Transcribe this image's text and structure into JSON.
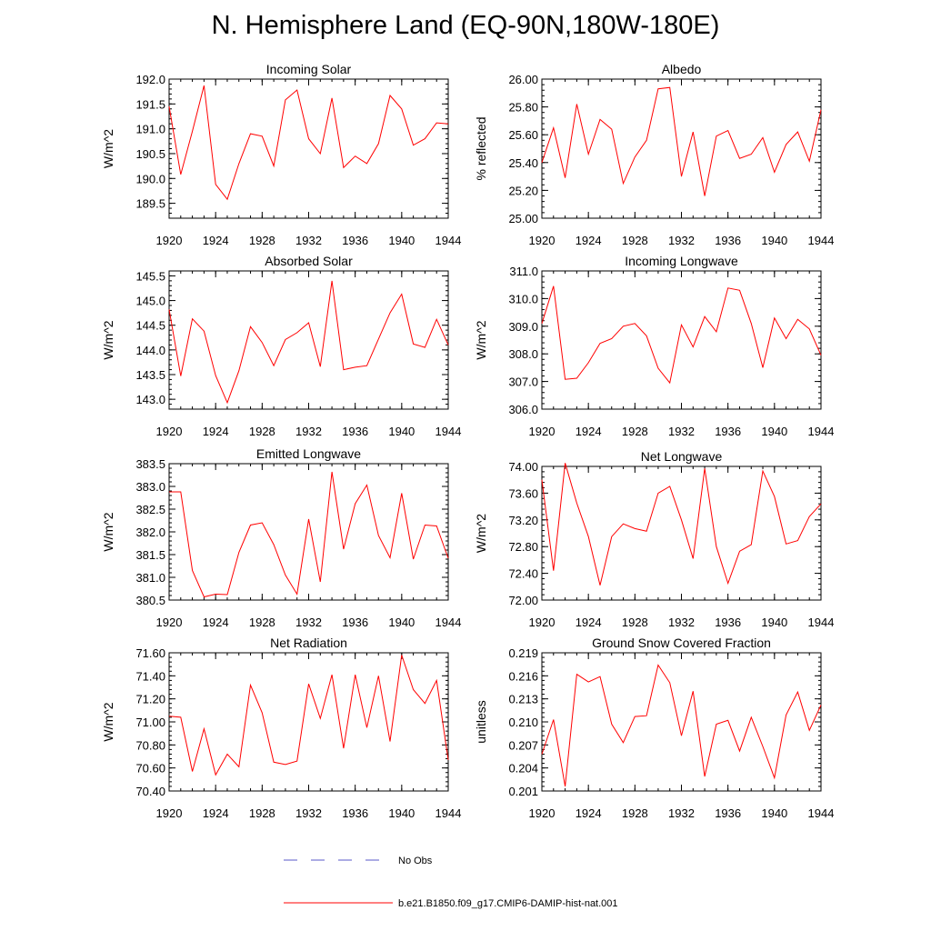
{
  "page": {
    "title": "N. Hemisphere Land (EQ-90N,180W-180E)"
  },
  "legend": [
    {
      "label": "No Obs",
      "color": "#5a5ac8",
      "dashed": true
    },
    {
      "label": "b.e21.B1850.f09_g17.CMIP6-DAMIP-hist-nat.001",
      "color": "#ff0000",
      "dashed": false
    }
  ],
  "chart_data": [
    {
      "type": "line",
      "title": "Incoming Solar",
      "ylabel": "W/m^2",
      "xlim": [
        1920,
        1944
      ],
      "ylim": [
        189.2,
        192.0
      ],
      "yticks": [
        "189.5",
        "190.0",
        "190.5",
        "191.0",
        "191.5",
        "192.0"
      ],
      "xticks": [
        "1920",
        "1924",
        "1928",
        "1932",
        "1936",
        "1940",
        "1944"
      ],
      "series": [
        {
          "color": "#ff0000",
          "x": [
            1920,
            1921,
            1922,
            1923,
            1924,
            1925,
            1926,
            1927,
            1928,
            1929,
            1930,
            1931,
            1932,
            1933,
            1934,
            1935,
            1936,
            1937,
            1938,
            1939,
            1940,
            1941,
            1942,
            1943,
            1944
          ],
          "y": [
            191.45,
            190.08,
            190.95,
            191.87,
            189.88,
            189.58,
            190.3,
            190.9,
            190.85,
            190.25,
            191.58,
            191.78,
            190.8,
            190.5,
            191.62,
            190.22,
            190.45,
            190.3,
            190.7,
            191.67,
            191.4,
            190.67,
            190.8,
            191.12,
            191.1
          ]
        }
      ]
    },
    {
      "type": "line",
      "title": "Albedo",
      "ylabel": "% reflected",
      "xlim": [
        1920,
        1944
      ],
      "ylim": [
        25.0,
        26.0
      ],
      "yticks": [
        "25.00",
        "25.20",
        "25.40",
        "25.60",
        "25.80",
        "26.00"
      ],
      "xticks": [
        "1920",
        "1924",
        "1928",
        "1932",
        "1936",
        "1940",
        "1944"
      ],
      "series": [
        {
          "color": "#ff0000",
          "x": [
            1920,
            1921,
            1922,
            1923,
            1924,
            1925,
            1926,
            1927,
            1928,
            1929,
            1930,
            1931,
            1932,
            1933,
            1934,
            1935,
            1936,
            1937,
            1938,
            1939,
            1940,
            1941,
            1942,
            1943,
            1944
          ],
          "y": [
            25.4,
            25.65,
            25.29,
            25.82,
            25.46,
            25.71,
            25.64,
            25.25,
            25.44,
            25.56,
            25.93,
            25.94,
            25.3,
            25.62,
            25.16,
            25.59,
            25.63,
            25.43,
            25.46,
            25.58,
            25.33,
            25.53,
            25.62,
            25.41,
            25.78
          ]
        }
      ]
    },
    {
      "type": "line",
      "title": "Absorbed Solar",
      "ylabel": "W/m^2",
      "xlim": [
        1920,
        1944
      ],
      "ylim": [
        142.8,
        145.6
      ],
      "yticks": [
        "143.0",
        "143.5",
        "144.0",
        "144.5",
        "145.0",
        "145.5"
      ],
      "xticks": [
        "1920",
        "1924",
        "1928",
        "1932",
        "1936",
        "1940",
        "1944"
      ],
      "series": [
        {
          "color": "#ff0000",
          "x": [
            1920,
            1921,
            1922,
            1923,
            1924,
            1925,
            1926,
            1927,
            1928,
            1929,
            1930,
            1931,
            1932,
            1933,
            1934,
            1935,
            1936,
            1937,
            1938,
            1939,
            1940,
            1941,
            1942,
            1943,
            1944
          ],
          "y": [
            144.82,
            143.47,
            144.63,
            144.38,
            143.48,
            142.93,
            143.58,
            144.47,
            144.15,
            143.68,
            144.21,
            144.35,
            144.55,
            143.66,
            145.4,
            143.6,
            143.65,
            143.68,
            144.22,
            144.75,
            145.13,
            144.12,
            144.05,
            144.62,
            144.1
          ]
        }
      ]
    },
    {
      "type": "line",
      "title": "Incoming Longwave",
      "ylabel": "W/m^2",
      "xlim": [
        1920,
        1944
      ],
      "ylim": [
        306.0,
        311.0
      ],
      "yticks": [
        "306.0",
        "307.0",
        "308.0",
        "309.0",
        "310.0",
        "311.0"
      ],
      "xticks": [
        "1920",
        "1924",
        "1928",
        "1932",
        "1936",
        "1940",
        "1944"
      ],
      "series": [
        {
          "color": "#ff0000",
          "x": [
            1920,
            1921,
            1922,
            1923,
            1924,
            1925,
            1926,
            1927,
            1928,
            1929,
            1930,
            1931,
            1932,
            1933,
            1934,
            1935,
            1936,
            1937,
            1938,
            1939,
            1940,
            1941,
            1942,
            1943,
            1944
          ],
          "y": [
            309.1,
            310.45,
            307.08,
            307.12,
            307.68,
            308.38,
            308.55,
            309.0,
            309.1,
            308.65,
            307.48,
            306.95,
            309.05,
            308.25,
            309.35,
            308.8,
            310.38,
            310.3,
            309.1,
            307.5,
            309.3,
            308.55,
            309.25,
            308.9,
            307.95
          ]
        }
      ]
    },
    {
      "type": "line",
      "title": "Emitted Longwave",
      "ylabel": "W/m^2",
      "xlim": [
        1920,
        1944
      ],
      "ylim": [
        380.5,
        383.5
      ],
      "yticks": [
        "380.5",
        "381.0",
        "381.5",
        "382.0",
        "382.5",
        "383.0",
        "383.5"
      ],
      "xticks": [
        "1920",
        "1924",
        "1928",
        "1932",
        "1936",
        "1940",
        "1944"
      ],
      "series": [
        {
          "color": "#ff0000",
          "x": [
            1920,
            1921,
            1922,
            1923,
            1924,
            1925,
            1926,
            1927,
            1928,
            1929,
            1930,
            1931,
            1932,
            1933,
            1934,
            1935,
            1936,
            1937,
            1938,
            1939,
            1940,
            1941,
            1942,
            1943,
            1944
          ],
          "y": [
            382.88,
            382.88,
            381.15,
            380.57,
            380.63,
            380.62,
            381.55,
            382.15,
            382.2,
            381.72,
            381.05,
            380.63,
            382.28,
            380.9,
            383.32,
            381.62,
            382.62,
            383.03,
            381.92,
            381.43,
            382.85,
            381.4,
            382.15,
            382.13,
            381.42
          ]
        }
      ]
    },
    {
      "type": "line",
      "title": "Net Longwave",
      "ylabel": "W/m^2",
      "xlim": [
        1920,
        1944
      ],
      "ylim": [
        72.0,
        74.0
      ],
      "yticks": [
        "72.00",
        "72.40",
        "72.80",
        "73.20",
        "73.60",
        "74.00"
      ],
      "xticks": [
        "1920",
        "1924",
        "1928",
        "1932",
        "1936",
        "1940",
        "1944"
      ],
      "series": [
        {
          "color": "#ff0000",
          "x": [
            1920,
            1921,
            1922,
            1923,
            1924,
            1925,
            1926,
            1927,
            1928,
            1929,
            1930,
            1931,
            1932,
            1933,
            1934,
            1935,
            1936,
            1937,
            1938,
            1939,
            1940,
            1941,
            1942,
            1943,
            1944
          ],
          "y": [
            73.8,
            72.44,
            74.05,
            73.45,
            72.95,
            72.22,
            72.95,
            73.14,
            73.07,
            73.03,
            73.6,
            73.7,
            73.2,
            72.62,
            73.97,
            72.8,
            72.25,
            72.73,
            72.83,
            73.93,
            73.55,
            72.84,
            72.89,
            73.25,
            73.44
          ]
        }
      ]
    },
    {
      "type": "line",
      "title": "Net Radiation",
      "ylabel": "W/m^2",
      "xlim": [
        1920,
        1944
      ],
      "ylim": [
        70.4,
        71.6
      ],
      "yticks": [
        "70.40",
        "70.60",
        "70.80",
        "71.00",
        "71.20",
        "71.40",
        "71.60"
      ],
      "xticks": [
        "1920",
        "1924",
        "1928",
        "1932",
        "1936",
        "1940",
        "1944"
      ],
      "series": [
        {
          "color": "#ff0000",
          "x": [
            1920,
            1921,
            1922,
            1923,
            1924,
            1925,
            1926,
            1927,
            1928,
            1929,
            1930,
            1931,
            1932,
            1933,
            1934,
            1935,
            1936,
            1937,
            1938,
            1939,
            1940,
            1941,
            1942,
            1943,
            1944
          ],
          "y": [
            71.05,
            71.04,
            70.57,
            70.94,
            70.54,
            70.72,
            70.61,
            71.32,
            71.08,
            70.65,
            70.63,
            70.66,
            71.33,
            71.03,
            71.41,
            70.77,
            71.41,
            70.95,
            71.4,
            70.83,
            71.58,
            71.28,
            71.16,
            71.36,
            70.67
          ]
        }
      ]
    },
    {
      "type": "line",
      "title": "Ground Snow Covered Fraction",
      "ylabel": "unitless",
      "xlim": [
        1920,
        1944
      ],
      "ylim": [
        0.201,
        0.219
      ],
      "yticks": [
        "0.201",
        "0.204",
        "0.207",
        "0.210",
        "0.213",
        "0.216",
        "0.219"
      ],
      "xticks": [
        "1920",
        "1924",
        "1928",
        "1932",
        "1936",
        "1940",
        "1944"
      ],
      "series": [
        {
          "color": "#ff0000",
          "x": [
            1920,
            1921,
            1922,
            1923,
            1924,
            1925,
            1926,
            1927,
            1928,
            1929,
            1930,
            1931,
            1932,
            1933,
            1934,
            1935,
            1936,
            1937,
            1938,
            1939,
            1940,
            1941,
            1942,
            1943,
            1944
          ],
          "y": [
            0.2058,
            0.2103,
            0.2016,
            0.2162,
            0.2152,
            0.2159,
            0.2097,
            0.2073,
            0.2107,
            0.2108,
            0.2174,
            0.2151,
            0.2082,
            0.214,
            0.2029,
            0.2097,
            0.2102,
            0.2062,
            0.2106,
            0.2068,
            0.2027,
            0.2109,
            0.2139,
            0.2089,
            0.2122
          ]
        }
      ]
    }
  ]
}
